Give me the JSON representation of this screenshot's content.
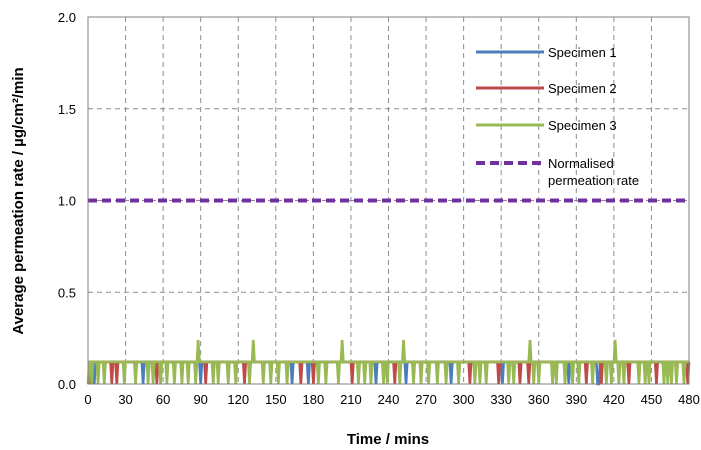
{
  "chart_data": {
    "type": "line",
    "title": "",
    "xlabel": "Time / mins",
    "ylabel": "Average permeation rate / µg/cm²/min",
    "xlim": [
      0,
      480
    ],
    "ylim": [
      0,
      2.0
    ],
    "x_ticks": [
      0,
      30,
      60,
      90,
      120,
      150,
      180,
      210,
      240,
      270,
      300,
      330,
      360,
      390,
      420,
      450,
      480
    ],
    "y_ticks": [
      "0.0",
      "0.5",
      "1.0",
      "1.5",
      "2.0"
    ],
    "grid": true,
    "legend_position": "top-right",
    "base_level": 0.12,
    "sample_step_mins": 1,
    "series": [
      {
        "name": "Specimen 1",
        "color": "#4a7ebb",
        "style": "solid",
        "zero_at": [
          5,
          44,
          90,
          163,
          176,
          230,
          254,
          290,
          331,
          384,
          407,
          408
        ],
        "spikes": []
      },
      {
        "name": "Specimen 2",
        "color": "#be4b48",
        "style": "solid",
        "zero_at": [
          2,
          19,
          23,
          55,
          94,
          125,
          170,
          180,
          211,
          245,
          305,
          328,
          345,
          352,
          398,
          410,
          432,
          454,
          479
        ],
        "spikes": []
      },
      {
        "name": "Specimen 3",
        "color": "#98b954",
        "style": "solid",
        "zero_at": [
          0,
          3,
          8,
          13,
          29,
          38,
          48,
          52,
          58,
          63,
          69,
          75,
          80,
          86,
          100,
          104,
          112,
          118,
          129,
          140,
          146,
          152,
          159,
          184,
          190,
          200,
          216,
          221,
          226,
          236,
          239,
          249,
          260,
          266,
          272,
          279,
          286,
          296,
          309,
          313,
          318,
          336,
          340,
          356,
          360,
          371,
          374,
          381,
          387,
          392,
          403,
          414,
          418,
          424,
          428,
          440,
          445,
          448,
          460,
          463,
          466,
          470,
          476
        ],
        "spikes": [
          {
            "x": 88,
            "y": 0.24
          },
          {
            "x": 132,
            "y": 0.24
          },
          {
            "x": 203,
            "y": 0.24
          },
          {
            "x": 252,
            "y": 0.24
          },
          {
            "x": 353,
            "y": 0.24
          },
          {
            "x": 421,
            "y": 0.24
          }
        ]
      },
      {
        "name": "Normalised permeation rate",
        "legend_lines": [
          "Normalised",
          "permeation rate"
        ],
        "color": "#7030a0",
        "style": "dashed",
        "x": [
          0,
          480
        ],
        "y": [
          1.0,
          1.0
        ]
      }
    ]
  }
}
